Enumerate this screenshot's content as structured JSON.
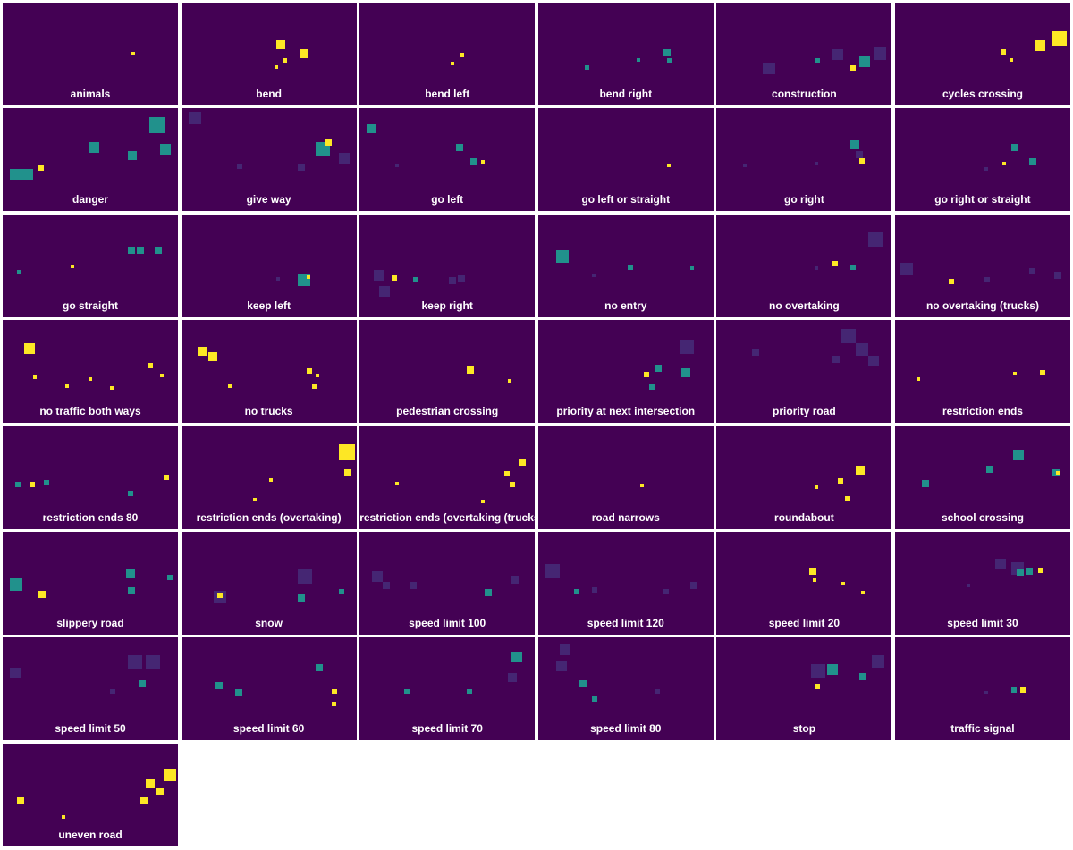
{
  "chart_data": {
    "type": "heatmap",
    "colormap": {
      "background": "#440154",
      "low": "#46337e",
      "mid": "#21918c",
      "high": "#fde725"
    },
    "tiles": [
      {
        "label": "animals"
      },
      {
        "label": "bend"
      },
      {
        "label": "bend left"
      },
      {
        "label": "bend right"
      },
      {
        "label": "construction"
      },
      {
        "label": "cycles crossing"
      },
      {
        "label": "danger"
      },
      {
        "label": "give way"
      },
      {
        "label": "go left"
      },
      {
        "label": "go left or straight"
      },
      {
        "label": "go right"
      },
      {
        "label": "go right or straight"
      },
      {
        "label": "go straight"
      },
      {
        "label": "keep left"
      },
      {
        "label": "keep right"
      },
      {
        "label": "no entry"
      },
      {
        "label": "no overtaking"
      },
      {
        "label": "no overtaking (trucks)"
      },
      {
        "label": "no traffic both ways"
      },
      {
        "label": "no trucks"
      },
      {
        "label": "pedestrian crossing"
      },
      {
        "label": "priority at next intersection"
      },
      {
        "label": "priority road"
      },
      {
        "label": "restriction ends"
      },
      {
        "label": "restriction ends 80"
      },
      {
        "label": "restriction ends (overtaking)"
      },
      {
        "label": "restriction ends (overtaking (trucks))"
      },
      {
        "label": "road narrows"
      },
      {
        "label": "roundabout"
      },
      {
        "label": "school crossing"
      },
      {
        "label": "slippery road"
      },
      {
        "label": "snow"
      },
      {
        "label": "speed limit 100"
      },
      {
        "label": "speed limit 120"
      },
      {
        "label": "speed limit 20"
      },
      {
        "label": "speed limit 30"
      },
      {
        "label": "speed limit 50"
      },
      {
        "label": "speed limit 60"
      },
      {
        "label": "speed limit 70"
      },
      {
        "label": "speed limit 80"
      },
      {
        "label": "stop"
      },
      {
        "label": "traffic signal"
      },
      {
        "label": "uneven road"
      }
    ]
  }
}
